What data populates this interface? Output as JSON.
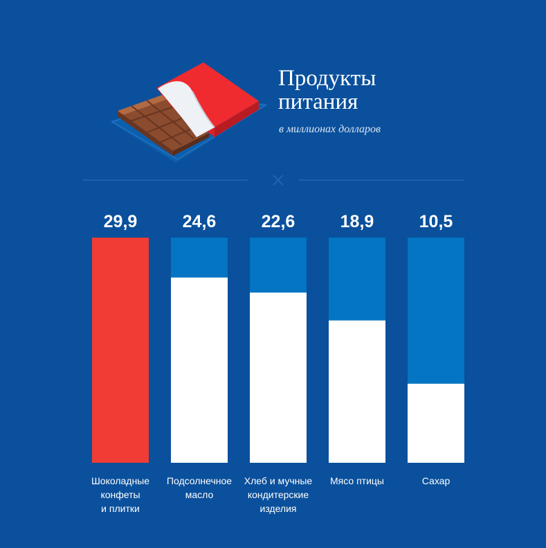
{
  "chart_data": {
    "type": "bar",
    "title_lines": [
      "Продукты",
      "питания"
    ],
    "subtitle": "в миллионах долларов",
    "categories": [
      [
        "Шоколадные",
        "конфеты",
        "и плитки"
      ],
      [
        "Подсолнечное",
        "масло"
      ],
      [
        "Хлеб и мучные",
        "кондитерские",
        "изделия"
      ],
      [
        "Мясо птицы"
      ],
      [
        "Сахар"
      ]
    ],
    "values": [
      29.9,
      24.6,
      22.6,
      18.9,
      10.5
    ],
    "value_labels": [
      "29,9",
      "24,6",
      "22,6",
      "18,9",
      "10,5"
    ],
    "ylim": [
      0,
      29.9
    ],
    "grid": false,
    "legend": "none",
    "highlight_index": 0
  },
  "colors": {
    "background": "#0a509c",
    "highlight": "#f03c34",
    "bar_fill": "#ffffff",
    "bar_track": "#0375c2"
  },
  "icons": {
    "illustration": "chocolate-bar-icon",
    "divider": "cross-icon"
  }
}
